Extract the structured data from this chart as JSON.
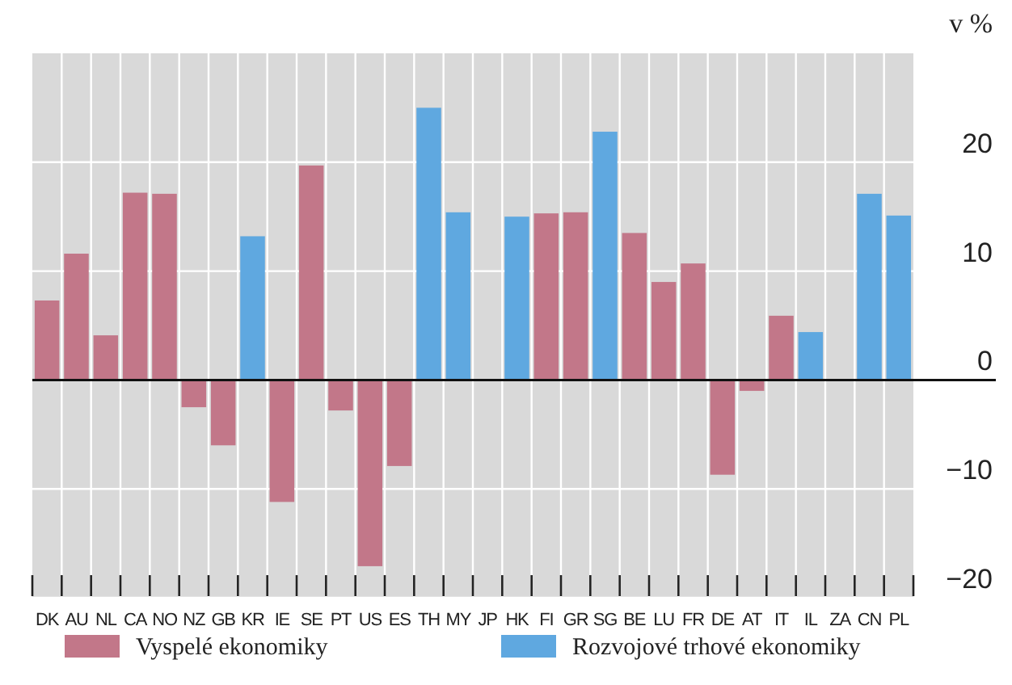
{
  "chart_data": {
    "type": "bar",
    "ylabel": "v %",
    "categories": [
      "DK",
      "AU",
      "NL",
      "CA",
      "NO",
      "NZ",
      "GB",
      "KR",
      "IE",
      "SE",
      "PT",
      "US",
      "ES",
      "TH",
      "MY",
      "JP",
      "HK",
      "FI",
      "GR",
      "SG",
      "BE",
      "LU",
      "FR",
      "DE",
      "AT",
      "IT",
      "IL",
      "ZA",
      "CN",
      "PL"
    ],
    "series": [
      {
        "name": "Vyspelé ekonomiky",
        "color": "#c27789",
        "values": [
          7.3,
          11.6,
          4.1,
          17.2,
          17.1,
          -2.5,
          -6.0,
          null,
          -11.2,
          19.7,
          -2.8,
          -17.1,
          -7.9,
          null,
          null,
          null,
          null,
          15.3,
          15.4,
          null,
          13.5,
          9.0,
          10.7,
          -8.7,
          -1.0,
          5.9,
          null,
          null,
          null,
          null
        ]
      },
      {
        "name": "Rozvojové trhové ekonomiky",
        "color": "#5fa8e0",
        "values": [
          null,
          null,
          null,
          null,
          null,
          null,
          null,
          13.2,
          null,
          null,
          null,
          null,
          null,
          25.0,
          15.4,
          null,
          15.0,
          null,
          null,
          22.8,
          null,
          null,
          null,
          null,
          null,
          null,
          4.4,
          null,
          17.1,
          15.1
        ]
      }
    ],
    "stacked": true,
    "ylim": [
      -20,
      30
    ],
    "yticks": [
      -20,
      -10,
      0,
      10,
      20
    ],
    "grid": true,
    "legend": "bottom"
  }
}
